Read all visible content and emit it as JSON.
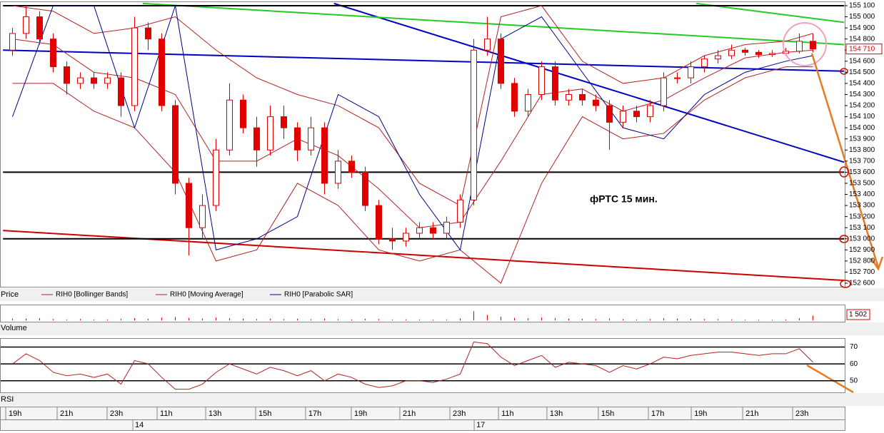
{
  "chart_data": {
    "type": "candlestick",
    "annotation": "фРТС   15 мин.",
    "price_label": "Price",
    "volume_label": "Volume",
    "rsi_label": "RSI",
    "ylim": [
      152600,
      155100
    ],
    "yticks": [
      {
        "value": 155100,
        "label": "155 100"
      },
      {
        "value": 155000,
        "label": "155 000"
      },
      {
        "value": 154900,
        "label": "154 900"
      },
      {
        "value": 154800,
        "label": "154 800"
      },
      {
        "value": 154700,
        "label": "154 700"
      },
      {
        "value": 154600,
        "label": "154 600"
      },
      {
        "value": 154500,
        "label": "154 500"
      },
      {
        "value": 154400,
        "label": "154 400"
      },
      {
        "value": 154300,
        "label": "154 300"
      },
      {
        "value": 154200,
        "label": "154 200"
      },
      {
        "value": 154100,
        "label": "154 100"
      },
      {
        "value": 154000,
        "label": "154 000"
      },
      {
        "value": 153900,
        "label": "153 900"
      },
      {
        "value": 153800,
        "label": "153 800"
      },
      {
        "value": 153700,
        "label": "153 700"
      },
      {
        "value": 153600,
        "label": "153 600"
      },
      {
        "value": 153500,
        "label": "153 500"
      },
      {
        "value": 153400,
        "label": "153 400"
      },
      {
        "value": 153300,
        "label": "153 300"
      },
      {
        "value": 153200,
        "label": "153 200"
      },
      {
        "value": 153100,
        "label": "153 100"
      },
      {
        "value": 153000,
        "label": "153 000"
      },
      {
        "value": 152900,
        "label": "152 900"
      },
      {
        "value": 152800,
        "label": "152 800"
      },
      {
        "value": 152700,
        "label": "152 700"
      },
      {
        "value": 152600,
        "label": "152 600"
      }
    ],
    "last_price": {
      "value": 154710,
      "label": "154 710"
    },
    "candle_color": "#e00000",
    "candles": [
      [
        154700,
        154900,
        154650,
        154850
      ],
      [
        154850,
        155100,
        154800,
        155000
      ],
      [
        155000,
        155050,
        154750,
        154800
      ],
      [
        154800,
        154850,
        154500,
        154550
      ],
      [
        154550,
        154600,
        154300,
        154400
      ],
      [
        154400,
        154500,
        154350,
        154450
      ],
      [
        154450,
        154500,
        154350,
        154400
      ],
      [
        154400,
        154500,
        154350,
        154450
      ],
      [
        154450,
        154500,
        154100,
        154200
      ],
      [
        154200,
        155000,
        154150,
        154900
      ],
      [
        154900,
        154950,
        154700,
        154800
      ],
      [
        154800,
        154850,
        154150,
        154200
      ],
      [
        154200,
        154250,
        153400,
        153500
      ],
      [
        153500,
        153550,
        152850,
        153100
      ],
      [
        153100,
        153400,
        153000,
        153300
      ],
      [
        153300,
        153900,
        153250,
        153800
      ],
      [
        153800,
        154400,
        153750,
        154250
      ],
      [
        154250,
        154300,
        153950,
        154000
      ],
      [
        154000,
        154100,
        153650,
        153800
      ],
      [
        153800,
        154200,
        153750,
        154100
      ],
      [
        154100,
        154200,
        153900,
        154000
      ],
      [
        154000,
        154050,
        153700,
        153800
      ],
      [
        153800,
        154100,
        153750,
        154000
      ],
      [
        154000,
        154050,
        153400,
        153500
      ],
      [
        153500,
        153800,
        153450,
        153700
      ],
      [
        153700,
        153750,
        153550,
        153600
      ],
      [
        153600,
        153650,
        153250,
        153300
      ],
      [
        153300,
        153350,
        152950,
        153000
      ],
      [
        153000,
        153100,
        152900,
        152980
      ],
      [
        152980,
        153100,
        152930,
        153050
      ],
      [
        153050,
        153150,
        153000,
        153100
      ],
      [
        153100,
        153150,
        153000,
        153050
      ],
      [
        153050,
        153200,
        153000,
        153150
      ],
      [
        153150,
        153400,
        153100,
        153350
      ],
      [
        153350,
        154800,
        153300,
        154700
      ],
      [
        154700,
        155000,
        154650,
        154800
      ],
      [
        154800,
        154850,
        154350,
        154400
      ],
      [
        154400,
        154450,
        154100,
        154150
      ],
      [
        154150,
        154350,
        154100,
        154300
      ],
      [
        154300,
        154600,
        154250,
        154550
      ],
      [
        154550,
        154600,
        154200,
        154250
      ],
      [
        154250,
        154350,
        154200,
        154300
      ],
      [
        154300,
        154350,
        154200,
        154250
      ],
      [
        154250,
        154300,
        154150,
        154200
      ],
      [
        154200,
        154250,
        153800,
        154050
      ],
      [
        154050,
        154200,
        154000,
        154150
      ],
      [
        154150,
        154200,
        154050,
        154100
      ],
      [
        154100,
        154250,
        154050,
        154200
      ],
      [
        154200,
        154500,
        154150,
        154450
      ],
      [
        154450,
        154500,
        154400,
        154450
      ],
      [
        154450,
        154600,
        154400,
        154550
      ],
      [
        154550,
        154650,
        154500,
        154620
      ],
      [
        154620,
        154700,
        154580,
        154650
      ],
      [
        154650,
        154750,
        154620,
        154700
      ],
      [
        154700,
        154720,
        154650,
        154680
      ],
      [
        154680,
        154700,
        154630,
        154660
      ],
      [
        154660,
        154700,
        154640,
        154670
      ],
      [
        154670,
        154720,
        154650,
        154690
      ],
      [
        154690,
        154850,
        154670,
        154780
      ],
      [
        154780,
        154850,
        154680,
        154710
      ]
    ],
    "overlays": [
      {
        "name": "RIH0 [Bollinger Bands]",
        "color": "#b22222",
        "x": [
          0,
          3,
          6,
          9,
          12,
          15,
          18,
          21,
          24,
          27,
          30,
          33,
          36,
          39,
          42,
          45,
          48,
          51,
          54,
          57,
          59
        ],
        "upper": [
          155100,
          155050,
          154850,
          154900,
          155000,
          154700,
          154450,
          154300,
          154200,
          154000,
          153500,
          153300,
          155000,
          155100,
          154600,
          154400,
          154450,
          154650,
          154750,
          154780,
          154850
        ],
        "lower": [
          154400,
          154400,
          154150,
          154000,
          153600,
          152800,
          152900,
          153500,
          153300,
          152900,
          152800,
          152900,
          152600,
          153500,
          154100,
          153900,
          153950,
          154250,
          154450,
          154550,
          154550
        ]
      },
      {
        "name": "RIH0 [Moving Average]",
        "color": "#b22222",
        "x": [
          0,
          3,
          6,
          9,
          12,
          15,
          18,
          21,
          24,
          27,
          30,
          33,
          36,
          39,
          42,
          45,
          48,
          51,
          54,
          57,
          59
        ],
        "values": [
          154800,
          154750,
          154500,
          154450,
          154300,
          153700,
          153700,
          153900,
          153750,
          153450,
          153100,
          153150,
          153700,
          154300,
          154350,
          154150,
          154250,
          154450,
          154630,
          154680,
          154700
        ]
      },
      {
        "name": "RIH0 [Parabolic SAR]",
        "color": "#00008b",
        "x": [
          0,
          3,
          6,
          9,
          12,
          15,
          18,
          21,
          24,
          27,
          30,
          33,
          36,
          39,
          42,
          45,
          48,
          51,
          54,
          57,
          59
        ],
        "values": [
          154100,
          155100,
          155100,
          154000,
          155100,
          152900,
          153000,
          153200,
          154300,
          154100,
          153400,
          152900,
          154800,
          155000,
          154500,
          154000,
          153900,
          154300,
          154500,
          154600,
          154650
        ]
      }
    ],
    "trendlines": [
      {
        "color": "#0000c0",
        "x": [
          -0.7,
          61.3
        ],
        "y": [
          154700,
          154510
        ]
      },
      {
        "color": "#0000c0",
        "x": [
          23.7,
          61.3
        ],
        "y": [
          155120,
          153690
        ]
      },
      {
        "color": "#22cc22",
        "x": [
          9.6,
          61.3
        ],
        "y": [
          155120,
          154750
        ]
      },
      {
        "color": "#22cc22",
        "x": [
          50.4,
          61.3
        ],
        "y": [
          155120,
          154950
        ]
      },
      {
        "color": "#cc0000",
        "x": [
          -0.7,
          61.3
        ],
        "y": [
          153075,
          152625
        ]
      },
      {
        "color": "#000000",
        "x": [
          -0.7,
          61.3
        ],
        "y": [
          153600,
          153600
        ]
      },
      {
        "color": "#000000",
        "x": [
          -0.7,
          61.3
        ],
        "y": [
          153000,
          153000
        ]
      },
      {
        "color": "#000000",
        "x": [
          -0.7,
          61.3
        ],
        "y": [
          155100,
          155100
        ]
      }
    ],
    "volume_ylim": [
      0,
      4000
    ],
    "volume": [
      600,
      500,
      700,
      400,
      300,
      400,
      300,
      300,
      500,
      700,
      500,
      900,
      1100,
      800,
      600,
      900,
      700,
      500,
      400,
      500,
      400,
      500,
      400,
      600,
      400,
      300,
      500,
      400,
      300,
      300,
      300,
      200,
      300,
      600,
      3000,
      1800,
      1200,
      800,
      700,
      900,
      800,
      500,
      500,
      400,
      600,
      400,
      300,
      400,
      700,
      500,
      500,
      400,
      400,
      300,
      200,
      200,
      200,
      300,
      700,
      1502
    ],
    "last_volume": {
      "value": 1502,
      "label": "1 502"
    },
    "rsi_ylim": [
      44,
      74
    ],
    "rsi_yticks": [
      50,
      60,
      70
    ],
    "rsi": [
      60,
      66,
      62,
      55,
      53,
      54,
      52,
      54,
      48,
      62,
      60,
      52,
      45,
      45,
      48,
      55,
      60,
      57,
      54,
      58,
      56,
      53,
      56,
      50,
      54,
      52,
      48,
      46,
      47,
      50,
      50,
      49,
      51,
      54,
      73,
      72,
      64,
      59,
      62,
      65,
      58,
      61,
      60,
      59,
      55,
      59,
      57,
      60,
      64,
      63,
      65,
      66,
      67,
      67,
      66,
      65,
      66,
      66,
      69,
      61
    ],
    "time_ticks": [
      {
        "value": -0.5,
        "label": "19h"
      },
      {
        "value": 3.29,
        "label": "21h"
      },
      {
        "value": 6.97,
        "label": "23h"
      },
      {
        "value": 10.66,
        "label": "11h"
      },
      {
        "value": 14.24,
        "label": "13h"
      },
      {
        "value": 17.92,
        "label": "15h"
      },
      {
        "value": 21.6,
        "label": "17h"
      },
      {
        "value": 24.97,
        "label": "19h"
      },
      {
        "value": 28.55,
        "label": "21h"
      },
      {
        "value": 32.24,
        "label": "23h"
      },
      {
        "value": 35.82,
        "label": "11h"
      },
      {
        "value": 39.39,
        "label": "13h"
      },
      {
        "value": 43.18,
        "label": "15h"
      },
      {
        "value": 46.87,
        "label": "17h"
      },
      {
        "value": 50.03,
        "label": "19h"
      },
      {
        "value": 53.82,
        "label": "21h"
      },
      {
        "value": 57.5,
        "label": "23h"
      }
    ],
    "day_ticks": [
      {
        "value": 8.87,
        "label": "14"
      },
      {
        "value": 34.03,
        "label": "17"
      }
    ]
  }
}
